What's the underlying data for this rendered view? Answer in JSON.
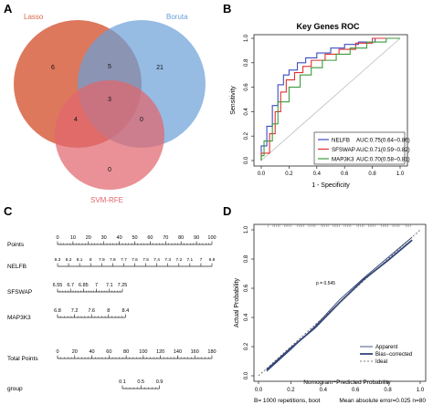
{
  "panels": {
    "a": {
      "letter": "A"
    },
    "b": {
      "letter": "B"
    },
    "c": {
      "letter": "C"
    },
    "d": {
      "letter": "D"
    }
  },
  "venn": {
    "sets": [
      {
        "name": "Lasso",
        "color": "#d9694b"
      },
      {
        "name": "Boruta",
        "color": "#6a9fd8"
      },
      {
        "name": "SVM-RFE",
        "color": "#e0666e"
      }
    ],
    "counts": {
      "lasso_only": "6",
      "boruta_only": "21",
      "svm_only": "0",
      "lasso_boruta": "5",
      "lasso_svm": "4",
      "boruta_svm": "0",
      "all": "3"
    }
  },
  "roc": {
    "title": "Key Genes ROC",
    "xlabel": "1 - Specificity",
    "ylabel": "Sensitivity",
    "ticks": [
      "0.0",
      "0.2",
      "0.4",
      "0.6",
      "0.8",
      "1.0"
    ],
    "legend": [
      {
        "gene": "NELFB",
        "auc": "AUC:0.75(0.64~0.86)",
        "color": "#3b4cc0"
      },
      {
        "gene": "SFSWAP",
        "auc": "AUC:0.71(0.59~0.82)",
        "color": "#e03030"
      },
      {
        "gene": "MAP3K3",
        "auc": "AUC:0.70(0.58~0.81)",
        "color": "#3c9a3c"
      }
    ]
  },
  "chart_data": [
    {
      "type": "line",
      "title": "Key Genes ROC",
      "xlabel": "1 - Specificity",
      "ylabel": "Sensitivity",
      "xlim": [
        0,
        1
      ],
      "ylim": [
        0,
        1
      ],
      "series": [
        {
          "name": "NELFB",
          "x": [
            0,
            0,
            0.04,
            0.04,
            0.08,
            0.08,
            0.12,
            0.12,
            0.16,
            0.16,
            0.2,
            0.2,
            0.26,
            0.26,
            0.32,
            0.32,
            0.4,
            0.4,
            0.5,
            0.5,
            0.6,
            0.6,
            0.7,
            0.7,
            0.82,
            0.82,
            1
          ],
          "y": [
            0,
            0.12,
            0.12,
            0.28,
            0.28,
            0.45,
            0.45,
            0.62,
            0.62,
            0.7,
            0.7,
            0.74,
            0.74,
            0.8,
            0.8,
            0.84,
            0.84,
            0.88,
            0.88,
            0.92,
            0.92,
            0.95,
            0.95,
            0.97,
            0.97,
            1,
            1
          ]
        },
        {
          "name": "SFSWAP",
          "x": [
            0,
            0,
            0.06,
            0.06,
            0.1,
            0.1,
            0.14,
            0.14,
            0.18,
            0.18,
            0.24,
            0.24,
            0.3,
            0.3,
            0.36,
            0.36,
            0.46,
            0.46,
            0.56,
            0.56,
            0.68,
            0.68,
            0.8,
            0.8,
            1
          ],
          "y": [
            0,
            0.06,
            0.06,
            0.22,
            0.22,
            0.4,
            0.4,
            0.56,
            0.56,
            0.66,
            0.66,
            0.72,
            0.72,
            0.77,
            0.77,
            0.82,
            0.82,
            0.87,
            0.87,
            0.91,
            0.91,
            0.96,
            0.96,
            1,
            1
          ]
        },
        {
          "name": "MAP3K3",
          "x": [
            0,
            0,
            0.02,
            0.02,
            0.08,
            0.08,
            0.12,
            0.12,
            0.2,
            0.2,
            0.28,
            0.28,
            0.36,
            0.36,
            0.44,
            0.44,
            0.54,
            0.54,
            0.64,
            0.64,
            0.76,
            0.76,
            0.9,
            0.9,
            1
          ],
          "y": [
            0,
            0.04,
            0.04,
            0.16,
            0.16,
            0.3,
            0.3,
            0.48,
            0.48,
            0.6,
            0.6,
            0.7,
            0.7,
            0.76,
            0.76,
            0.82,
            0.82,
            0.87,
            0.87,
            0.92,
            0.92,
            0.97,
            0.97,
            1,
            1
          ]
        }
      ]
    },
    {
      "type": "line",
      "xlabel": "Nomogram−Predicted Probability",
      "ylabel": "Actual Probability",
      "xlim": [
        0,
        1
      ],
      "ylim": [
        0,
        1
      ],
      "series": [
        {
          "name": "Apparent",
          "x": [
            0.05,
            0.2,
            0.35,
            0.5,
            0.65,
            0.8,
            0.95
          ],
          "y": [
            0.03,
            0.18,
            0.34,
            0.52,
            0.67,
            0.81,
            0.95
          ]
        },
        {
          "name": "Bias−corrected",
          "x": [
            0.05,
            0.2,
            0.35,
            0.5,
            0.65,
            0.8,
            0.95
          ],
          "y": [
            0.04,
            0.19,
            0.33,
            0.5,
            0.66,
            0.79,
            0.93
          ]
        },
        {
          "name": "Ideal",
          "x": [
            0,
            1
          ],
          "y": [
            0,
            1
          ]
        }
      ]
    }
  ],
  "nomogram": {
    "rows": [
      {
        "label": "Points",
        "ticks": [
          "0",
          "10",
          "20",
          "30",
          "40",
          "50",
          "60",
          "70",
          "80",
          "90",
          "100"
        ],
        "start": 0,
        "end": 1,
        "minor": true
      },
      {
        "label": "NELFB",
        "ticks": [
          "8.3",
          "8.2",
          "8.1",
          "8",
          "7.9",
          "7.8",
          "7.7",
          "7.6",
          "7.5",
          "7.4",
          "7.3",
          "7.2",
          "7.1",
          "7",
          "6.9"
        ],
        "start": 0,
        "end": 1,
        "minor": false
      },
      {
        "label": "SFSWAP",
        "ticks": [
          "6.55",
          "6.7",
          "6.85",
          "7",
          "7.1",
          "7.25"
        ],
        "start": 0,
        "end": 0.42,
        "minor": true
      },
      {
        "label": "MAP3K3",
        "ticks": [
          "6.8",
          "7.2",
          "7.6",
          "8",
          "8.4"
        ],
        "start": 0,
        "end": 0.44,
        "minor": true
      },
      {
        "label": "Total Points",
        "ticks": [
          "0",
          "20",
          "40",
          "60",
          "80",
          "100",
          "120",
          "140",
          "160",
          "180"
        ],
        "start": 0,
        "end": 1,
        "minor": true
      },
      {
        "label": "group",
        "ticks": [
          "0.1",
          "0.5",
          "0.9"
        ],
        "start": 0.42,
        "end": 0.66,
        "minor": true
      }
    ]
  },
  "calibration": {
    "xlabel": "Nomogram−Predicted Probability",
    "ylabel": "Actual Probability",
    "ticks": [
      "0.0",
      "0.2",
      "0.4",
      "0.6",
      "0.8",
      "1.0"
    ],
    "pvalue": "p = 0.545",
    "legend": [
      {
        "name": "Apparent",
        "style": "solid-thin",
        "color": "#30457a"
      },
      {
        "name": "Bias−corrected",
        "style": "solid-thick",
        "color": "#30457a"
      },
      {
        "name": "Ideal",
        "style": "dashed",
        "color": "#555555"
      }
    ],
    "footer_left": "B= 1000 repetitions, boot",
    "footer_right": "Mean absolute error=0.025 n=80"
  }
}
